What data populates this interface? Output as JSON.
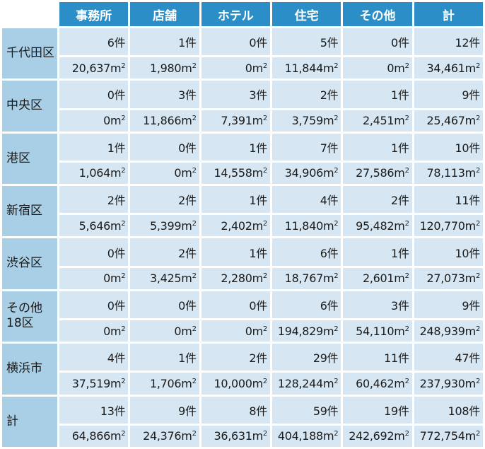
{
  "header": {
    "columns": [
      "事務所",
      "店舗",
      "ホテル",
      "住宅",
      "その他",
      "計"
    ]
  },
  "units": {
    "count": "件",
    "area": "m",
    "area_sup": "2"
  },
  "rows": [
    {
      "name": "千代田区",
      "counts": [
        "6",
        "1",
        "0",
        "5",
        "0",
        "12"
      ],
      "areas": [
        "20,637",
        "1,980",
        "0",
        "11,844",
        "0",
        "34,461"
      ]
    },
    {
      "name": "中央区",
      "counts": [
        "0",
        "3",
        "3",
        "2",
        "1",
        "9"
      ],
      "areas": [
        "0",
        "11,866",
        "7,391",
        "3,759",
        "2,451",
        "25,467"
      ]
    },
    {
      "name": "港区",
      "counts": [
        "1",
        "0",
        "1",
        "7",
        "1",
        "10"
      ],
      "areas": [
        "1,064",
        "0",
        "14,558",
        "34,906",
        "27,586",
        "78,113"
      ]
    },
    {
      "name": "新宿区",
      "counts": [
        "2",
        "2",
        "1",
        "4",
        "2",
        "11"
      ],
      "areas": [
        "5,646",
        "5,399",
        "2,402",
        "11,840",
        "95,482",
        "120,770"
      ]
    },
    {
      "name": "渋谷区",
      "counts": [
        "0",
        "2",
        "1",
        "6",
        "1",
        "10"
      ],
      "areas": [
        "0",
        "3,425",
        "2,280",
        "18,767",
        "2,601",
        "27,073"
      ]
    },
    {
      "name": "その他18区",
      "counts": [
        "0",
        "0",
        "0",
        "6",
        "3",
        "9"
      ],
      "areas": [
        "0",
        "0",
        "0",
        "194,829",
        "54,110",
        "248,939"
      ]
    },
    {
      "name": "横浜市",
      "counts": [
        "4",
        "1",
        "2",
        "29",
        "11",
        "47"
      ],
      "areas": [
        "37,519",
        "1,706",
        "10,000",
        "128,244",
        "60,462",
        "237,930"
      ]
    },
    {
      "name": "計",
      "counts": [
        "13",
        "9",
        "8",
        "59",
        "19",
        "108"
      ],
      "areas": [
        "64,866",
        "24,376",
        "36,631",
        "404,188",
        "242,692",
        "772,754"
      ]
    }
  ]
}
